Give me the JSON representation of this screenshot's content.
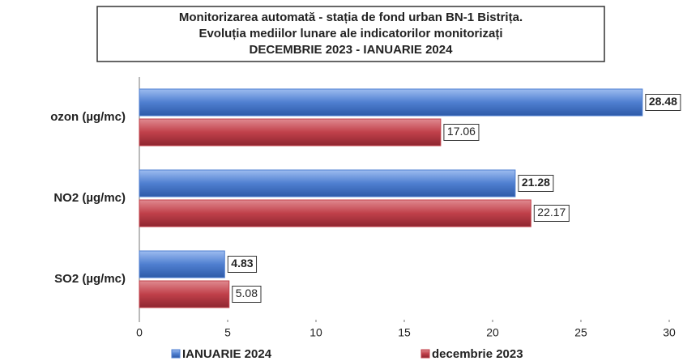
{
  "chart_data": {
    "type": "barh",
    "title": [
      "Monitorizarea automată  - stația de fond urban BN-1 Bistrița.",
      "Evoluția mediilor lunare ale indicatorilor monitorizați",
      "DECEMBRIE 2023 - IANUARIE 2024"
    ],
    "categories": [
      "ozon (µg/mc)",
      "NO2 (µg/mc)",
      "SO2 (µg/mc)"
    ],
    "series": [
      {
        "name": "IANUARIE 2024",
        "color": "#4f7fd0",
        "values": [
          28.48,
          21.28,
          4.83
        ]
      },
      {
        "name": "decembrie 2023",
        "color": "#c0404a",
        "values": [
          17.06,
          22.17,
          5.08
        ]
      }
    ],
    "xlim": [
      0,
      30
    ],
    "xticks": [
      0,
      5,
      10,
      15,
      20,
      25,
      30
    ],
    "legend": "bottom"
  }
}
